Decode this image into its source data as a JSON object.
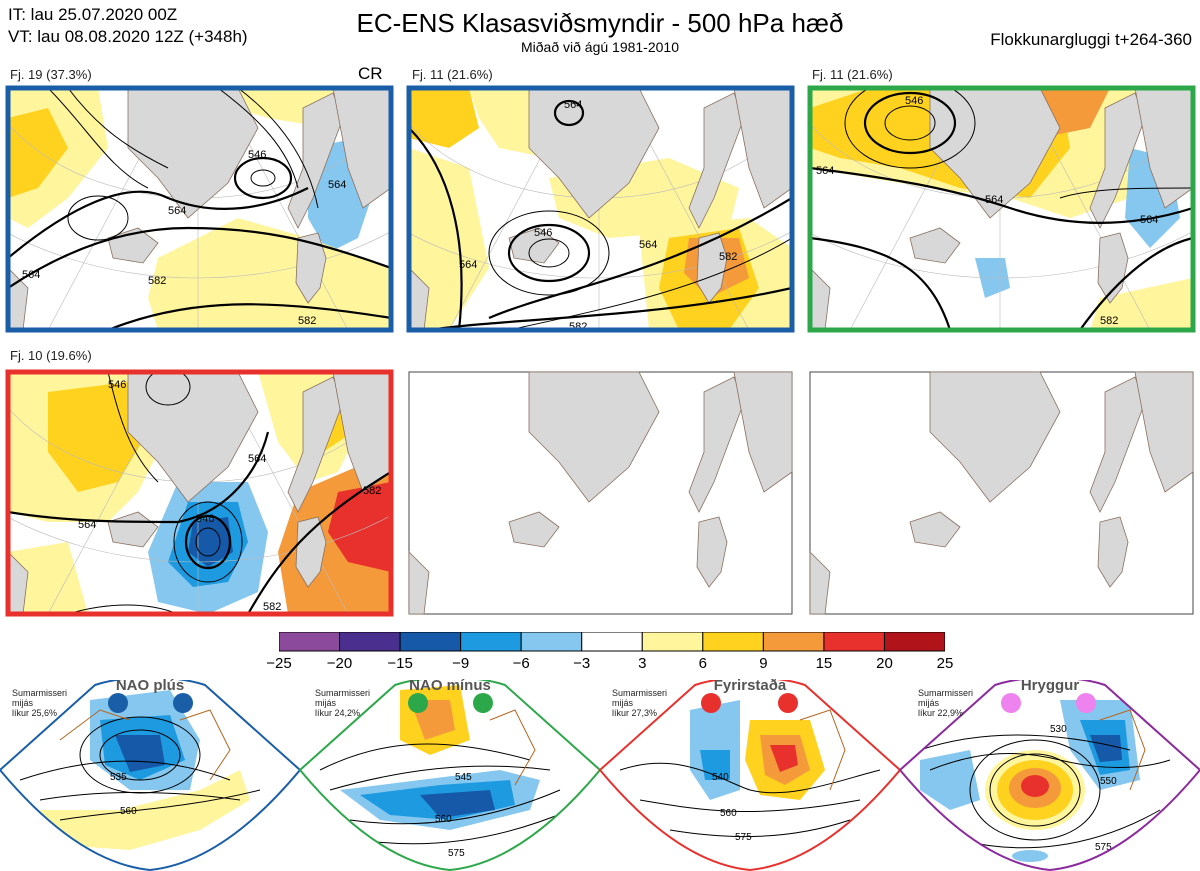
{
  "header": {
    "it_line": "IT: lau 25.07.2020 00Z",
    "vt_line": "VT: lau 08.08.2020 12Z  (+348h)",
    "title": "EC-ENS Klasasviðsmyndir - 500 hPa hæð",
    "subtitle": "Miðað við ágú 1981-2010",
    "window": "Flokkunargluggi t+264-360"
  },
  "clusters": [
    {
      "label": "Fj. 19 (37.3%)",
      "tag": "CR",
      "frame_color": "#1a5ea8",
      "contours": [
        "546",
        "564",
        "564",
        "582",
        "582",
        "564"
      ]
    },
    {
      "label": "Fj. 11 (21.6%)",
      "tag": "",
      "frame_color": "#1a5ea8",
      "contours": [
        "564",
        "546",
        "564",
        "582",
        "582",
        "564"
      ]
    },
    {
      "label": "Fj. 11 (21.6%)",
      "tag": "",
      "frame_color": "#2ca84a",
      "contours": [
        "546",
        "564",
        "564",
        "564",
        "582"
      ]
    },
    {
      "label": "Fj. 10 (19.6%)",
      "tag": "",
      "frame_color": "#e8302c",
      "contours": [
        "546",
        "564",
        "546",
        "582",
        "582",
        "564"
      ]
    }
  ],
  "colorbar": {
    "colors": [
      "#8b4a9c",
      "#4b2f8f",
      "#1559a8",
      "#1d9ae0",
      "#86c7ef",
      "#ffffff",
      "#fff59d",
      "#ffd21f",
      "#f59a3a",
      "#e8302c",
      "#b0141a"
    ],
    "labels": [
      "−25",
      "−20",
      "−15",
      "−9",
      "−6",
      "−3",
      "3",
      "6",
      "9",
      "15",
      "20",
      "25"
    ]
  },
  "regimes": [
    {
      "name": "NAO plús",
      "season": "Sumarmisseri",
      "line2": "mijás",
      "likelihood": "líkur 25,6%",
      "color": "#1a5ea8",
      "dot_color": "#1a5ea8",
      "contours": [
        "535",
        "560"
      ]
    },
    {
      "name": "NAO mínus",
      "season": "Sumarmisseri",
      "line2": "mijás",
      "likelihood": "líkur 24,2%",
      "color": "#2ca84a",
      "dot_color": "#2ca84a",
      "contours": [
        "545",
        "560",
        "575"
      ]
    },
    {
      "name": "Fyrirstaða",
      "season": "Sumarmisseri",
      "line2": "mijás",
      "likelihood": "líkur 27,3%",
      "color": "#e8302c",
      "dot_color": "#e8302c",
      "contours": [
        "540",
        "560",
        "575"
      ]
    },
    {
      "name": "Hryggur",
      "season": "Sumarmisseri",
      "line2": "mijás",
      "likelihood": "líkur 22,9%",
      "color": "#8b2a9c",
      "dot_color": "#ee82ee",
      "contours": [
        "530",
        "550",
        "575"
      ]
    }
  ]
}
